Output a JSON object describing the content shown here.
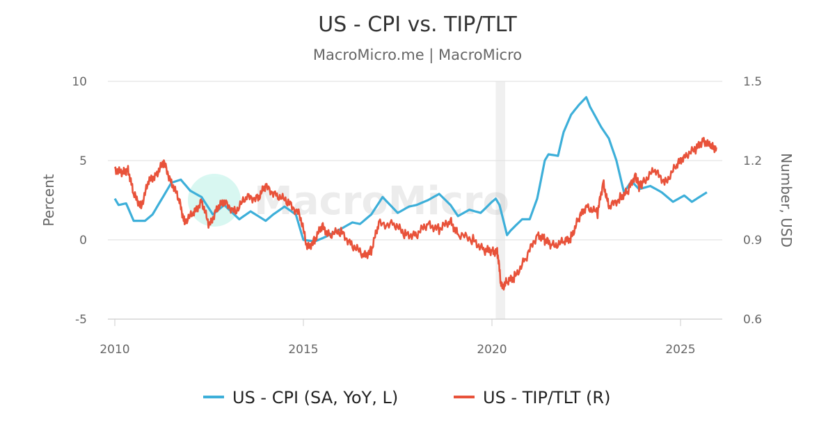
{
  "chart_data": {
    "type": "line",
    "title": "US - CPI vs. TIP/TLT",
    "subtitle": "MacroMicro.me | MacroMicro",
    "watermark": "MacroMicro",
    "xlim": [
      2010,
      2026.1
    ],
    "x_ticks": [
      "2010",
      "2015",
      "2020",
      "2025"
    ],
    "y_left": {
      "label": "Percent",
      "lim": [
        -5,
        10
      ],
      "ticks": [
        "10",
        "5",
        "0",
        "-5"
      ]
    },
    "y_right": {
      "label": "Number, USD",
      "lim": [
        0.6,
        1.5
      ],
      "ticks": [
        "1.5",
        "1.2",
        "0.9",
        "0.6"
      ]
    },
    "grid": true,
    "legend_position": "bottom",
    "shaded_periods": [
      [
        2020.1,
        2020.35
      ]
    ],
    "colors": {
      "cpi": "#3dafd9",
      "tip_tlt": "#e8523a",
      "shade": "#f0f0f0"
    },
    "series": [
      {
        "name": "US - CPI (SA, YoY, L)",
        "axis": "left",
        "x": [
          2010.0,
          2010.1,
          2010.3,
          2010.5,
          2010.8,
          2011.0,
          2011.3,
          2011.5,
          2011.75,
          2012.0,
          2012.3,
          2012.6,
          2012.9,
          2013.3,
          2013.6,
          2014.0,
          2014.2,
          2014.5,
          2014.8,
          2015.0,
          2015.3,
          2015.6,
          2016.0,
          2016.3,
          2016.5,
          2016.8,
          2017.1,
          2017.5,
          2017.8,
          2018.0,
          2018.3,
          2018.6,
          2018.9,
          2019.1,
          2019.4,
          2019.7,
          2020.0,
          2020.1,
          2020.2,
          2020.4,
          2020.5,
          2020.8,
          2021.0,
          2021.2,
          2021.4,
          2021.5,
          2021.75,
          2021.9,
          2022.1,
          2022.3,
          2022.5,
          2022.6,
          2022.9,
          2023.1,
          2023.3,
          2023.5,
          2023.7,
          2023.9,
          2024.2,
          2024.5,
          2024.8,
          2025.1,
          2025.3,
          2025.5,
          2025.7
        ],
        "values": [
          2.6,
          2.2,
          2.3,
          1.2,
          1.2,
          1.6,
          2.8,
          3.6,
          3.8,
          3.1,
          2.7,
          1.6,
          2.2,
          1.3,
          1.8,
          1.2,
          1.6,
          2.1,
          1.6,
          0.0,
          -0.1,
          0.2,
          0.7,
          1.1,
          1.0,
          1.6,
          2.7,
          1.7,
          2.1,
          2.2,
          2.5,
          2.9,
          2.2,
          1.5,
          1.9,
          1.7,
          2.4,
          2.6,
          2.2,
          0.3,
          0.6,
          1.3,
          1.3,
          2.6,
          5.0,
          5.4,
          5.3,
          6.8,
          7.9,
          8.5,
          9.0,
          8.4,
          7.1,
          6.4,
          5.0,
          3.0,
          3.7,
          3.2,
          3.4,
          3.0,
          2.4,
          2.8,
          2.4,
          2.7,
          3.0
        ]
      },
      {
        "name": "US - TIP/TLT (R)",
        "axis": "right",
        "x": [
          2010.0,
          2010.2,
          2010.35,
          2010.5,
          2010.7,
          2010.9,
          2011.1,
          2011.3,
          2011.5,
          2011.7,
          2011.85,
          2012.1,
          2012.3,
          2012.5,
          2012.7,
          2012.9,
          2013.2,
          2013.5,
          2013.8,
          2014.0,
          2014.3,
          2014.6,
          2014.9,
          2015.1,
          2015.3,
          2015.5,
          2015.7,
          2016.0,
          2016.3,
          2016.6,
          2016.8,
          2017.0,
          2017.4,
          2017.7,
          2018.0,
          2018.3,
          2018.6,
          2018.9,
          2019.1,
          2019.5,
          2019.8,
          2020.0,
          2020.15,
          2020.25,
          2020.4,
          2020.6,
          2020.9,
          2021.2,
          2021.4,
          2021.6,
          2021.9,
          2022.1,
          2022.3,
          2022.5,
          2022.8,
          2022.95,
          2023.1,
          2023.4,
          2023.6,
          2023.8,
          2023.9,
          2024.0,
          2024.3,
          2024.6,
          2024.9,
          2025.1,
          2025.4,
          2025.6,
          2025.8,
          2025.95
        ],
        "values": [
          1.17,
          1.15,
          1.17,
          1.07,
          1.03,
          1.12,
          1.15,
          1.19,
          1.12,
          1.05,
          0.97,
          1.0,
          1.05,
          0.95,
          1.02,
          1.04,
          1.01,
          1.06,
          1.06,
          1.1,
          1.07,
          1.04,
          1.0,
          0.87,
          0.9,
          0.95,
          0.92,
          0.93,
          0.88,
          0.84,
          0.86,
          0.96,
          0.96,
          0.92,
          0.92,
          0.96,
          0.94,
          0.97,
          0.92,
          0.9,
          0.86,
          0.86,
          0.85,
          0.72,
          0.74,
          0.76,
          0.83,
          0.92,
          0.9,
          0.88,
          0.89,
          0.91,
          0.98,
          1.03,
          1.0,
          1.12,
          1.02,
          1.06,
          1.08,
          1.15,
          1.1,
          1.12,
          1.16,
          1.12,
          1.18,
          1.22,
          1.24,
          1.28,
          1.25,
          1.25
        ]
      }
    ]
  }
}
